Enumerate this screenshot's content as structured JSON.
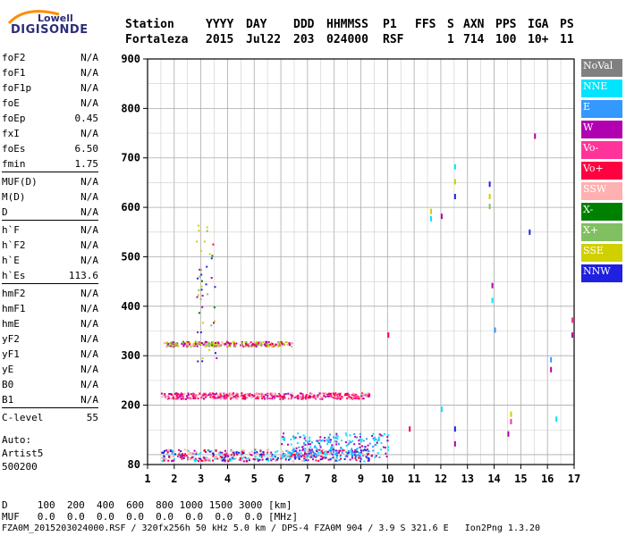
{
  "logo": {
    "line1": "Lowell",
    "line2": "DIGISONDE"
  },
  "header": {
    "labels": [
      "Station",
      "YYYY",
      "DAY",
      "DDD",
      "HHMMSS",
      "P1",
      "FFS",
      "S",
      "AXN",
      "PPS",
      "IGA",
      "PS"
    ],
    "values": [
      "Fortaleza",
      "2015",
      "Jul22",
      "203",
      "024000",
      "RSF",
      "",
      "1",
      "714",
      "100",
      "10+",
      "11"
    ]
  },
  "params": [
    {
      "name": "foF2",
      "value": "N/A"
    },
    {
      "name": "foF1",
      "value": "N/A"
    },
    {
      "name": "foF1p",
      "value": "N/A"
    },
    {
      "name": "foE",
      "value": "N/A"
    },
    {
      "name": "foEp",
      "value": "0.45"
    },
    {
      "name": "fxI",
      "value": "N/A"
    },
    {
      "name": "foEs",
      "value": "6.50"
    },
    {
      "name": "fmin",
      "value": "1.75"
    },
    {
      "name": "MUF(D)",
      "value": "N/A"
    },
    {
      "name": "M(D)",
      "value": "N/A"
    },
    {
      "name": "D",
      "value": "N/A"
    },
    {
      "name": "h`F",
      "value": "N/A"
    },
    {
      "name": "h`F2",
      "value": "N/A"
    },
    {
      "name": "h`E",
      "value": "N/A"
    },
    {
      "name": "h`Es",
      "value": "113.6"
    },
    {
      "name": "hmF2",
      "value": "N/A"
    },
    {
      "name": "hmF1",
      "value": "N/A"
    },
    {
      "name": "hmE",
      "value": "N/A"
    },
    {
      "name": "yF2",
      "value": "N/A"
    },
    {
      "name": "yF1",
      "value": "N/A"
    },
    {
      "name": "yE",
      "value": "N/A"
    },
    {
      "name": "B0",
      "value": "N/A"
    },
    {
      "name": "B1",
      "value": "N/A"
    },
    {
      "name": "C-level",
      "value": "55"
    }
  ],
  "auto": {
    "line1": "Auto:",
    "line2": "Artist5",
    "line3": "500200"
  },
  "legend": [
    {
      "label": "NoVal",
      "color": "#808080"
    },
    {
      "label": "NNE",
      "color": "#00e5ff"
    },
    {
      "label": "E",
      "color": "#3399ff"
    },
    {
      "label": "W",
      "color": "#b000b0"
    },
    {
      "label": "Vo-",
      "color": "#ff3399"
    },
    {
      "label": "Vo+",
      "color": "#ff0040"
    },
    {
      "label": "SSW",
      "color": "#ffb0b0"
    },
    {
      "label": "X-",
      "color": "#008000"
    },
    {
      "label": "X+",
      "color": "#80c060"
    },
    {
      "label": "SSE",
      "color": "#d0d000"
    },
    {
      "label": "NNW",
      "color": "#2020e0"
    }
  ],
  "bottom": {
    "d_row": "D     100  200  400  600  800 1000 1500 3000 [km]",
    "muf_row": "MUF   0.0  0.0  0.0  0.0  0.0  0.0  0.0  0.0 [MHz]",
    "footer": "FZA0M_2015203024000.RSF / 320fx256h 50 kHz 5.0 km / DPS-4 FZA0M 904 / 3.9 S 321.6 E   Ion2Png 1.3.20"
  },
  "chart_data": {
    "type": "scatter",
    "xlabel": "",
    "ylabel": "",
    "xlim": [
      1,
      17
    ],
    "ylim": [
      80,
      900
    ],
    "xticks": [
      "1",
      "2",
      "3",
      "4",
      "5",
      "6",
      "7",
      "8",
      "9",
      "10",
      "11",
      "12",
      "13",
      "14",
      "15",
      "16",
      "17"
    ],
    "yticks": [
      "80",
      "200",
      "300",
      "400",
      "500",
      "600",
      "700",
      "800",
      "900"
    ],
    "grid": true,
    "traces": [
      {
        "name": "E-layer echo band",
        "x_range": [
          1.5,
          9.3
        ],
        "height": 100,
        "spread": 12,
        "colors": [
          "#ff0040",
          "#b000b0",
          "#00e5ff",
          "#ffb0b0",
          "#2020e0"
        ]
      },
      {
        "name": "Es band W/NNE",
        "x_range": [
          6.0,
          10.0
        ],
        "height": 120,
        "spread": 25,
        "colors": [
          "#b000b0",
          "#00e5ff",
          "#3399ff"
        ]
      },
      {
        "name": "2nd hop band",
        "x_range": [
          1.5,
          9.3
        ],
        "height": 220,
        "spread": 6,
        "colors": [
          "#ff0040",
          "#ffb0b0",
          "#ff3399",
          "#b000b0"
        ]
      },
      {
        "name": "3rd hop band",
        "x_range": [
          1.6,
          6.4
        ],
        "height": 325,
        "spread": 5,
        "colors": [
          "#ff0040",
          "#ffb0b0",
          "#b000b0",
          "#80c060",
          "#d0d000"
        ]
      },
      {
        "name": "spread column",
        "x_range": [
          2.8,
          3.6
        ],
        "height": 430,
        "spread": 140,
        "colors": [
          "#008000",
          "#80c060",
          "#d0d000",
          "#2020e0",
          "#ff0040",
          "#b000b0"
        ]
      }
    ],
    "points": [
      {
        "x": 10.0,
        "y": 340,
        "color": "#ff0040"
      },
      {
        "x": 11.6,
        "y": 590,
        "color": "#d0d000"
      },
      {
        "x": 11.6,
        "y": 575,
        "color": "#00e5ff"
      },
      {
        "x": 12.0,
        "y": 580,
        "color": "#b000b0"
      },
      {
        "x": 12.5,
        "y": 680,
        "color": "#00e5ff"
      },
      {
        "x": 12.5,
        "y": 650,
        "color": "#d0d000"
      },
      {
        "x": 12.5,
        "y": 620,
        "color": "#2020e0"
      },
      {
        "x": 13.8,
        "y": 645,
        "color": "#2020e0"
      },
      {
        "x": 13.8,
        "y": 620,
        "color": "#d0d000"
      },
      {
        "x": 13.8,
        "y": 600,
        "color": "#80c060"
      },
      {
        "x": 13.9,
        "y": 440,
        "color": "#b000b0"
      },
      {
        "x": 13.9,
        "y": 410,
        "color": "#00e5ff"
      },
      {
        "x": 14.0,
        "y": 350,
        "color": "#3399ff"
      },
      {
        "x": 15.3,
        "y": 548,
        "color": "#2020e0"
      },
      {
        "x": 15.5,
        "y": 742,
        "color": "#b000b0"
      },
      {
        "x": 16.1,
        "y": 290,
        "color": "#3399ff"
      },
      {
        "x": 16.1,
        "y": 270,
        "color": "#b000b0"
      },
      {
        "x": 16.9,
        "y": 370,
        "color": "#ff3399"
      },
      {
        "x": 16.9,
        "y": 340,
        "color": "#b000b0"
      },
      {
        "x": 14.6,
        "y": 180,
        "color": "#d0d000"
      },
      {
        "x": 14.6,
        "y": 165,
        "color": "#ff3399"
      },
      {
        "x": 14.5,
        "y": 140,
        "color": "#b000b0"
      },
      {
        "x": 12.0,
        "y": 190,
        "color": "#00e5ff"
      },
      {
        "x": 12.5,
        "y": 150,
        "color": "#2020e0"
      },
      {
        "x": 12.5,
        "y": 120,
        "color": "#b000b0"
      },
      {
        "x": 16.3,
        "y": 170,
        "color": "#00e5ff"
      },
      {
        "x": 10.8,
        "y": 150,
        "color": "#ff0040"
      }
    ]
  }
}
